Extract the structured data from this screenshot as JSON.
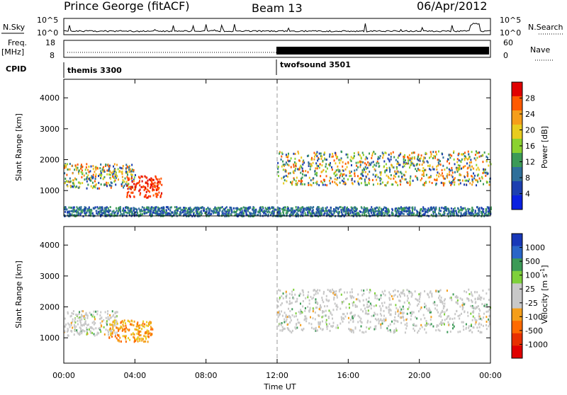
{
  "header": {
    "station": "Prince George (fitACF)",
    "beam": "Beam 13",
    "date": "06/Apr/2012"
  },
  "strip": {
    "nsky_label": "N.Sky",
    "nsearch_label": "N.Search",
    "nsky_ticks": [
      "10^5",
      "10^0"
    ],
    "nsearch_ticks": [
      "10^5",
      "10^0"
    ],
    "freq_label_top": "Freq.",
    "freq_label_unit": "[MHz]",
    "freq_ticks": [
      "18",
      "8"
    ],
    "nave_label": "Nave",
    "nave_ticks": [
      "60",
      "0"
    ],
    "cpid_label": "CPID",
    "cpid_segments": [
      {
        "label": "themis 3300",
        "start_hour": 0,
        "end_hour": 12
      },
      {
        "label": "twofsound 3501",
        "start_hour": 12,
        "end_hour": 24
      }
    ]
  },
  "x_axis": {
    "label": "Time UT",
    "ticks": [
      "00:00",
      "04:00",
      "08:00",
      "12:00",
      "16:00",
      "20:00",
      "00:00"
    ],
    "hours": [
      0,
      4,
      8,
      12,
      16,
      20,
      24
    ]
  },
  "chart_data": [
    {
      "type": "heatmap",
      "name": "power",
      "ylabel": "Slant Range [km]",
      "yticks": [
        1000,
        2000,
        3000,
        4000
      ],
      "ylim": [
        180,
        4600
      ],
      "xlim_hours": [
        0,
        24
      ],
      "colorbar": {
        "label": "Power [dB]",
        "ticks": [
          "28",
          "24",
          "20",
          "16",
          "12",
          "8",
          "4"
        ],
        "colors": [
          "#e00000",
          "#ff5a00",
          "#f59e1a",
          "#e8cc1f",
          "#8bd230",
          "#3c9a57",
          "#2f6f9a",
          "#1c3fb0",
          "#0a20e0"
        ]
      },
      "echo_regions": [
        {
          "t0": 0.0,
          "t1": 4.0,
          "r_lo": 1100,
          "r_hi": 1900,
          "level": "mid"
        },
        {
          "t0": 3.5,
          "t1": 5.5,
          "r_lo": 800,
          "r_hi": 1500,
          "level": "high"
        },
        {
          "t0": 12.0,
          "t1": 24.0,
          "r_lo": 1200,
          "r_hi": 2300,
          "level": "mid"
        },
        {
          "t0": 0.0,
          "t1": 24.0,
          "r_lo": 200,
          "r_hi": 500,
          "level": "low"
        }
      ]
    },
    {
      "type": "heatmap",
      "name": "velocity",
      "ylabel": "Slant Range [km]",
      "yticks": [
        1000,
        2000,
        3000,
        4000
      ],
      "ylim": [
        180,
        4600
      ],
      "xlim_hours": [
        0,
        24
      ],
      "colorbar": {
        "label": "Velocity [m s^-1]",
        "ticks": [
          "1000",
          "500",
          "100",
          "25",
          "-25",
          "-100",
          "-500",
          "-1000"
        ],
        "colors": [
          "#1838b8",
          "#2a66c8",
          "#3c9a57",
          "#7ed03a",
          "#c8c8c8",
          "#c8c8c8",
          "#f59e1a",
          "#ff6a00",
          "#e83000",
          "#e00000"
        ]
      },
      "echo_regions": [
        {
          "t0": 0.0,
          "t1": 3.0,
          "r_lo": 1100,
          "r_hi": 1900,
          "level": "ground"
        },
        {
          "t0": 2.5,
          "t1": 5.0,
          "r_lo": 900,
          "r_hi": 1600,
          "level": "away"
        },
        {
          "t0": 12.0,
          "t1": 24.0,
          "r_lo": 1200,
          "r_hi": 2600,
          "level": "ground"
        }
      ]
    }
  ]
}
